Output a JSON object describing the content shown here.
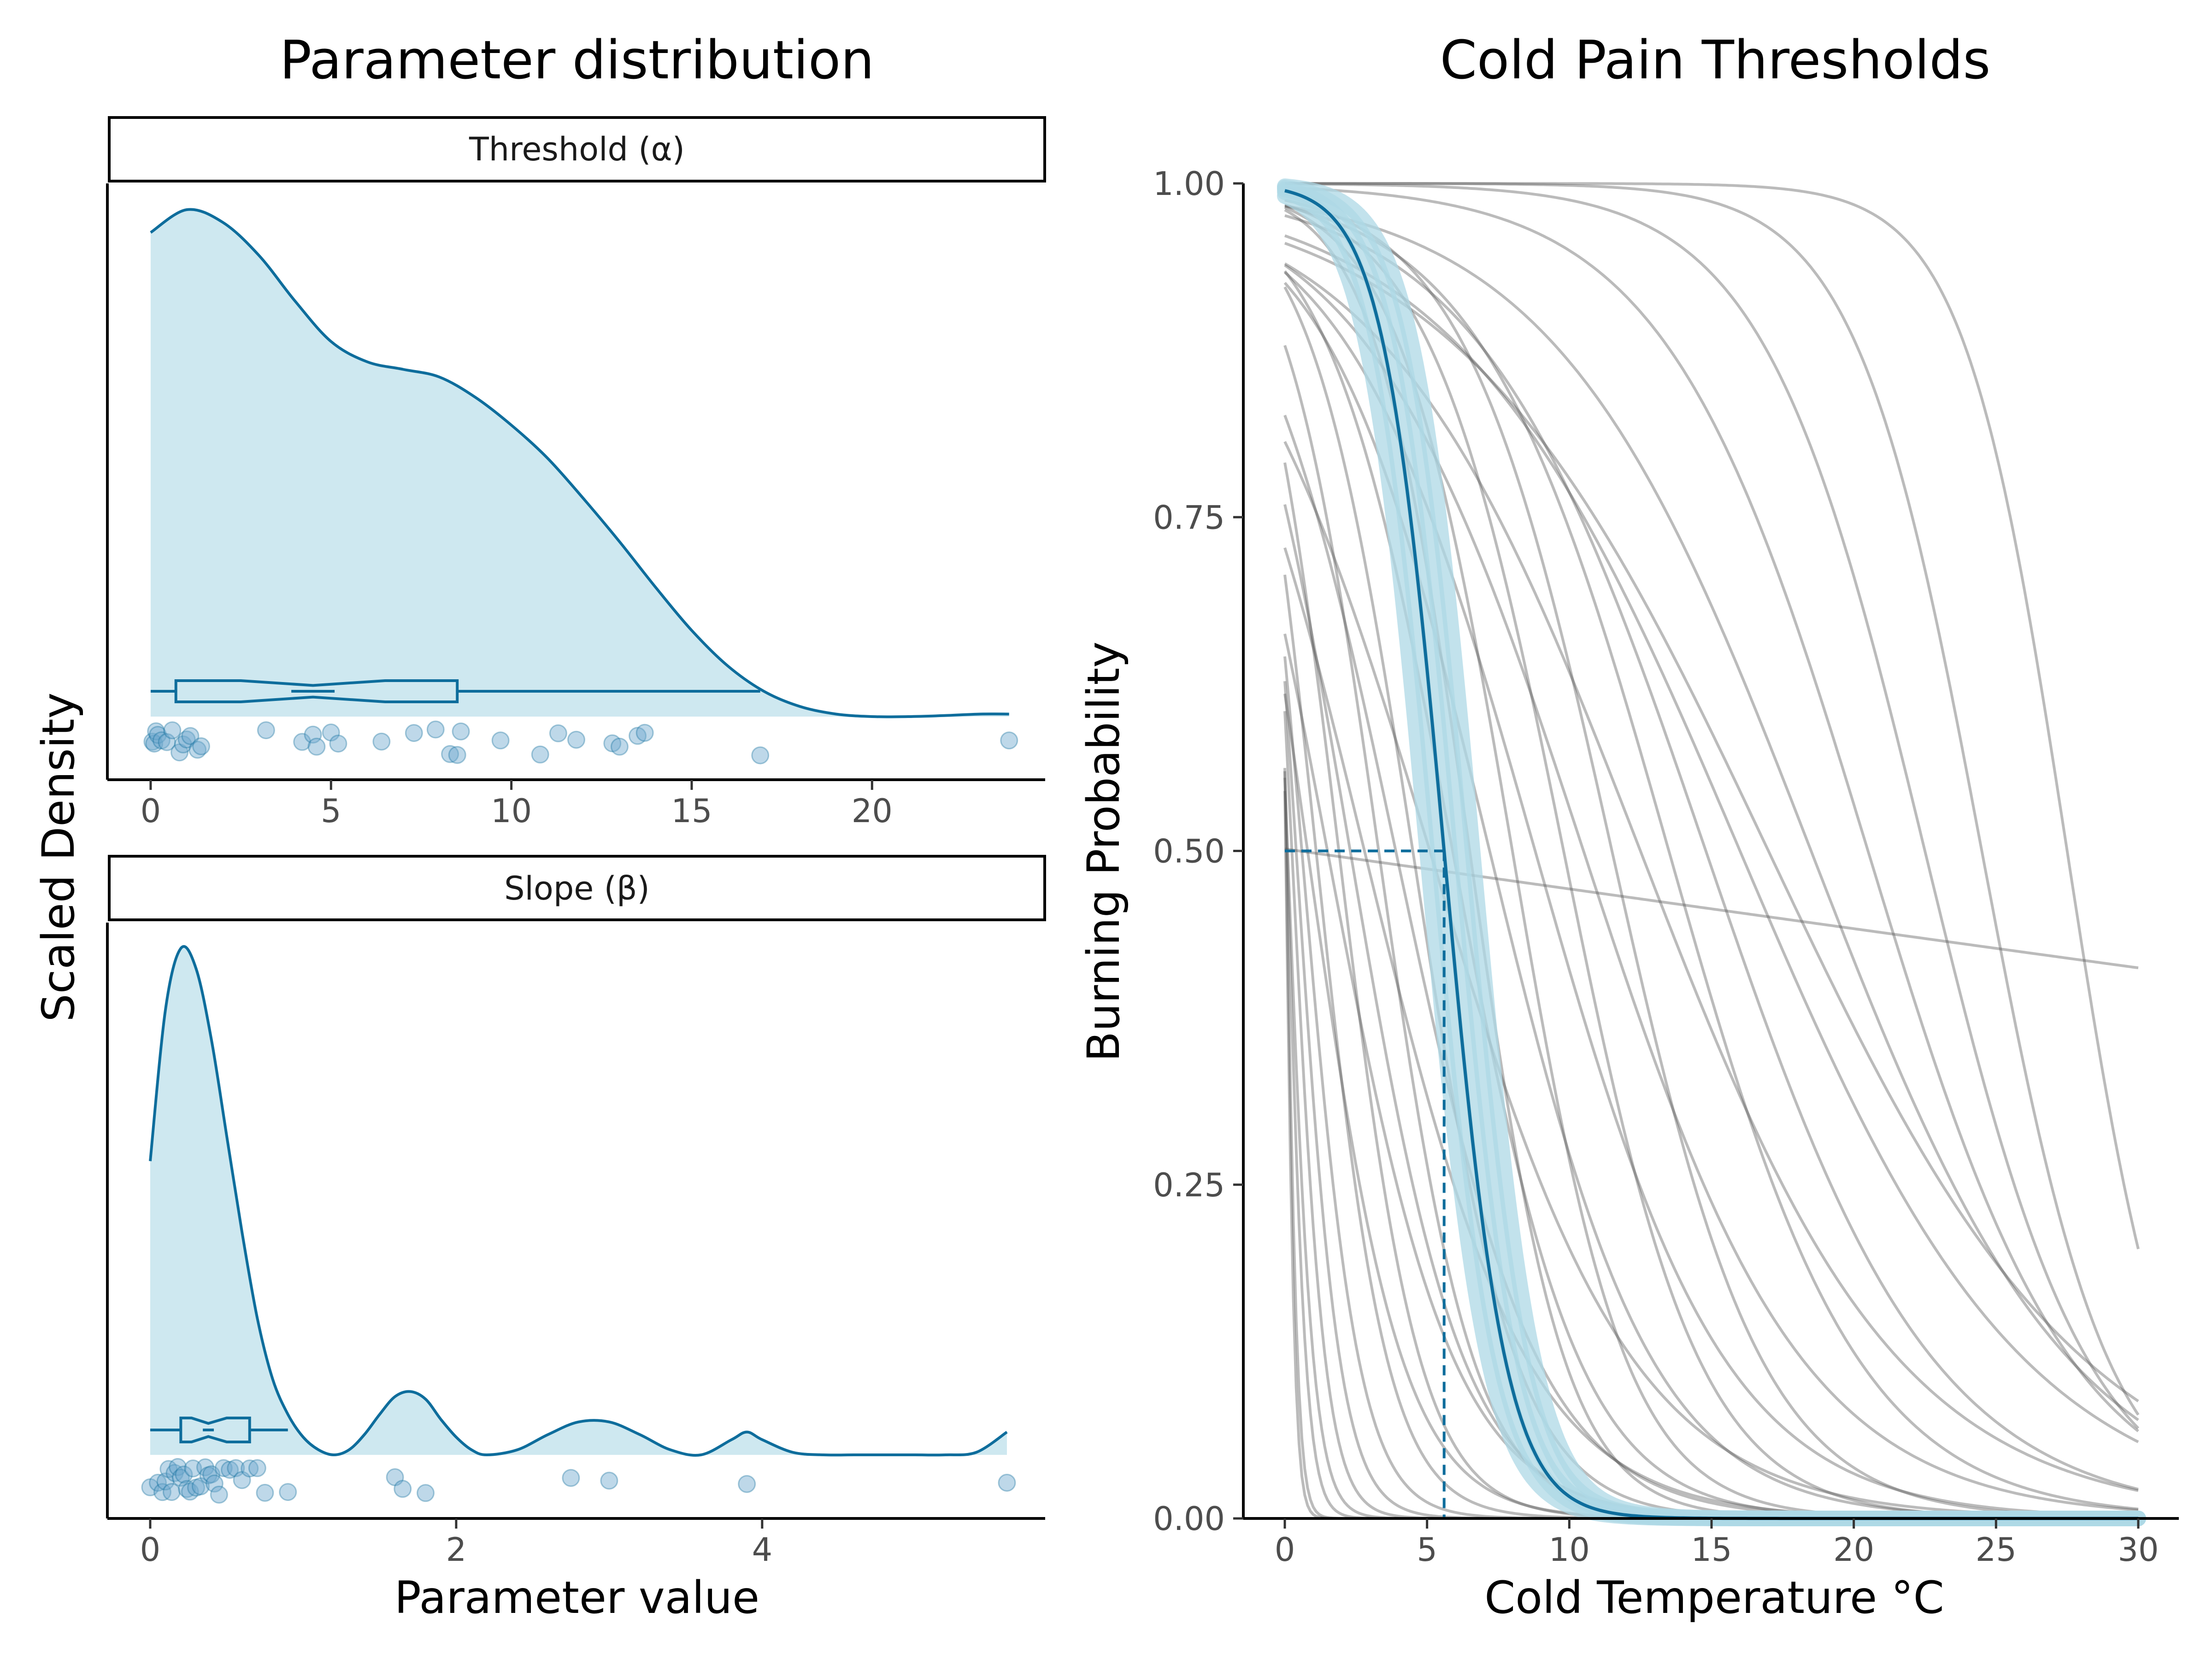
{
  "figure": {
    "left_title": "Parameter distribution",
    "right_title": "Cold Pain Thresholds",
    "shared_ylabel": "Scaled Density",
    "shared_xlabel": "Parameter value"
  },
  "colors": {
    "accent": "#0e6d9c",
    "fill": "#add8e6",
    "points": "#6fa9cf",
    "grey_curves": "#555555",
    "axis": "#000000"
  },
  "chart_data": [
    {
      "type": "area",
      "panel": "Threshold (α)",
      "strip_label": "Threshold (α)",
      "xlim": [
        -1.2,
        24.8
      ],
      "xticks": [
        0,
        5,
        10,
        15,
        20
      ],
      "density_x": [
        0,
        1,
        2,
        3,
        4,
        5,
        6,
        7,
        8,
        9,
        10,
        11,
        12,
        13,
        14,
        15,
        16,
        17,
        18,
        19,
        20,
        21,
        22,
        23,
        23.8
      ],
      "density_y": [
        0.955,
        1.0,
        0.975,
        0.91,
        0.82,
        0.74,
        0.7,
        0.685,
        0.67,
        0.63,
        0.575,
        0.51,
        0.43,
        0.345,
        0.255,
        0.17,
        0.1,
        0.05,
        0.02,
        0.005,
        0.0,
        0.0,
        0.002,
        0.005,
        0.005
      ],
      "boxplot": {
        "whisker_low": 0,
        "q1": 0.7,
        "median": 4.5,
        "q3": 8.5,
        "whisker_high": 16.9,
        "notch_low": 2.5,
        "notch_high": 6.5
      },
      "points": [
        0.05,
        0.1,
        0.15,
        0.2,
        0.3,
        0.45,
        0.6,
        0.8,
        0.9,
        1.0,
        1.1,
        1.3,
        1.4,
        3.2,
        4.2,
        4.5,
        4.6,
        5.0,
        5.2,
        6.4,
        7.3,
        7.9,
        8.3,
        8.5,
        8.6,
        9.7,
        10.8,
        11.3,
        11.8,
        12.8,
        13.0,
        13.5,
        13.7,
        16.9,
        23.8
      ]
    },
    {
      "type": "area",
      "panel": "Slope (β)",
      "strip_label": "Slope (β)",
      "xlabel": "Parameter value",
      "xlim": [
        -0.28,
        5.85
      ],
      "xticks": [
        0,
        2,
        4
      ],
      "density_x": [
        0,
        0.1,
        0.2,
        0.3,
        0.4,
        0.5,
        0.6,
        0.7,
        0.8,
        0.9,
        1.0,
        1.1,
        1.2,
        1.3,
        1.4,
        1.5,
        1.6,
        1.7,
        1.8,
        1.9,
        2.0,
        2.1,
        2.2,
        2.4,
        2.6,
        2.8,
        3.0,
        3.2,
        3.4,
        3.6,
        3.8,
        3.9,
        4.0,
        4.2,
        4.4,
        4.6,
        4.8,
        5.0,
        5.2,
        5.4,
        5.6
      ],
      "density_y": [
        0.58,
        0.88,
        1.0,
        0.96,
        0.82,
        0.63,
        0.44,
        0.27,
        0.15,
        0.08,
        0.035,
        0.01,
        0.0,
        0.01,
        0.04,
        0.08,
        0.115,
        0.125,
        0.11,
        0.07,
        0.035,
        0.01,
        0.0,
        0.01,
        0.04,
        0.065,
        0.065,
        0.04,
        0.01,
        0.0,
        0.03,
        0.045,
        0.03,
        0.005,
        0.0,
        0.0,
        0.0,
        0.0,
        0.0,
        0.005,
        0.045
      ],
      "boxplot": {
        "whisker_low": 0,
        "q1": 0.2,
        "median": 0.38,
        "q3": 0.65,
        "whisker_high": 0.9,
        "notch_low": 0.27,
        "notch_high": 0.5
      },
      "points": [
        0.0,
        0.05,
        0.08,
        0.1,
        0.12,
        0.14,
        0.16,
        0.18,
        0.2,
        0.22,
        0.24,
        0.26,
        0.28,
        0.3,
        0.33,
        0.36,
        0.38,
        0.4,
        0.42,
        0.45,
        0.48,
        0.52,
        0.56,
        0.6,
        0.65,
        0.7,
        0.75,
        0.9,
        1.6,
        1.65,
        1.8,
        2.75,
        3.0,
        3.9,
        5.6
      ]
    },
    {
      "type": "line",
      "title": "Cold Pain Thresholds",
      "xlabel": "Cold Temperature °C",
      "ylabel": "Burning Probability",
      "xlim": [
        -1.5,
        31.5
      ],
      "ylim": [
        0,
        1
      ],
      "xticks": [
        0,
        5,
        10,
        15,
        20,
        25,
        30
      ],
      "yticks": [
        0.0,
        0.25,
        0.5,
        0.75,
        1.0
      ],
      "ytick_labels": [
        "0.00",
        "0.25",
        "0.50",
        "0.75",
        "1.00"
      ],
      "threshold_marker": {
        "x": 5.6,
        "y": 0.5
      },
      "mean_curve": {
        "alpha": 5.6,
        "beta": 0.93
      },
      "band_alphas": [
        5.0,
        5.4,
        5.8,
        6.2,
        6.6
      ],
      "individual_curves": [
        {
          "alpha": 27.5,
          "beta": 0.55
        },
        {
          "alpha": 24.5,
          "beta": 0.45
        },
        {
          "alpha": 22.5,
          "beta": 0.35
        },
        {
          "alpha": 20.5,
          "beta": 0.28
        },
        {
          "alpha": 18.5,
          "beta": 0.22
        },
        {
          "alpha": 17.0,
          "beta": 0.18
        },
        {
          "alpha": 16.0,
          "beta": 0.2
        },
        {
          "alpha": 14.8,
          "beta": 0.25
        },
        {
          "alpha": 13.5,
          "beta": 0.3
        },
        {
          "alpha": 12.5,
          "beta": 0.22
        },
        {
          "alpha": 11.5,
          "beta": 0.38
        },
        {
          "alpha": 10.5,
          "beta": 0.26
        },
        {
          "alpha": 9.8,
          "beta": 0.42
        },
        {
          "alpha": 8.8,
          "beta": 0.3
        },
        {
          "alpha": 8.0,
          "beta": 0.5
        },
        {
          "alpha": 7.2,
          "beta": 0.35
        },
        {
          "alpha": 6.5,
          "beta": 0.6
        },
        {
          "alpha": 5.9,
          "beta": 0.45
        },
        {
          "alpha": 5.1,
          "beta": 0.28
        },
        {
          "alpha": 4.5,
          "beta": 0.55
        },
        {
          "alpha": 3.9,
          "beta": 0.4
        },
        {
          "alpha": 3.3,
          "beta": 0.6
        },
        {
          "alpha": 2.8,
          "beta": 0.35
        },
        {
          "alpha": 2.3,
          "beta": 0.5
        },
        {
          "alpha": 1.9,
          "beta": 0.7
        },
        {
          "alpha": 1.5,
          "beta": 0.45
        },
        {
          "alpha": 1.1,
          "beta": 0.8
        },
        {
          "alpha": 0.8,
          "beta": 0.6
        },
        {
          "alpha": 0.6,
          "beta": 1.0
        },
        {
          "alpha": 0.4,
          "beta": 1.3
        },
        {
          "alpha": 0.25,
          "beta": 1.7
        },
        {
          "alpha": 0.1,
          "beta": 2.2
        },
        {
          "alpha": 0.08,
          "beta": 3.0
        },
        {
          "alpha": 0.05,
          "beta": 5.0
        },
        {
          "alpha": 0.03,
          "beta": 6.0
        },
        {
          "alpha": 0.5,
          "beta": 0.012
        }
      ]
    }
  ]
}
